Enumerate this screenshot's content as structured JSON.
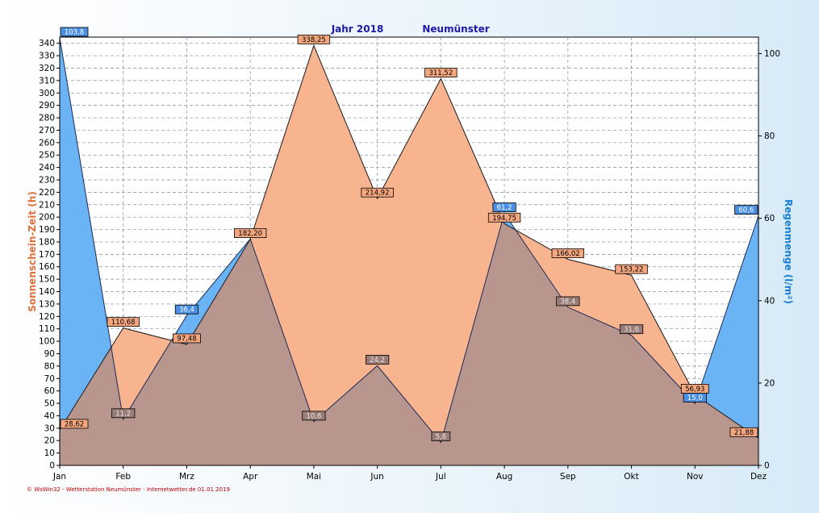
{
  "title": {
    "year_label": "Jahr  2018",
    "station": "Neumünster"
  },
  "footer": "© WsWin32 - Wetterstation Neumünster - Internetwetter.de  01.01.2019",
  "colors": {
    "sunshine_fill": "#f8b38f",
    "rain_fill": "#6ab4f5",
    "overlap_fill": "#b8968d",
    "sunshine_label_bg": "#f4a77e",
    "rain_label_bg": "#4b8fe3",
    "grid": "#7f8fa8"
  },
  "chart_data": {
    "type": "area",
    "categories": [
      "Jan",
      "Feb",
      "Mrz",
      "Apr",
      "Mai",
      "Jun",
      "Jul",
      "Aug",
      "Sep",
      "Okt",
      "Nov",
      "Dez"
    ],
    "ylabel_left": "Sonnenschein-Zeit  (h)",
    "ylabel_right": "Regenmenge  (l/m²)",
    "ylim_left": [
      0,
      345
    ],
    "ylim_right": [
      0,
      104
    ],
    "yticks_left": [
      "0",
      "10",
      "20",
      "30",
      "40",
      "50",
      "60",
      "70",
      "80",
      "90",
      "100",
      "110",
      "120",
      "130",
      "140",
      "150",
      "160",
      "170",
      "180",
      "190",
      "200",
      "210",
      "220",
      "230",
      "240",
      "250",
      "260",
      "270",
      "280",
      "290",
      "300",
      "310",
      "320",
      "330",
      "340"
    ],
    "yticks_right": [
      "0",
      "20",
      "40",
      "60",
      "80",
      "100"
    ],
    "grid": true,
    "series": [
      {
        "axis": "left",
        "values": [
          28.62,
          110.68,
          97.48,
          182.2,
          338.25,
          214.92,
          311.52,
          194.75,
          166.02,
          153.22,
          56.93,
          21.88
        ],
        "labels": [
          "28,62",
          "110,68",
          "97,48",
          "182,20",
          "338,25",
          "214,92",
          "311,52",
          "194,75",
          "166,02",
          "153,22",
          "56,93",
          "21,88"
        ]
      },
      {
        "axis": "right",
        "values": [
          103.8,
          11.2,
          36.4,
          55.0,
          10.6,
          24.2,
          5.6,
          61.2,
          38.4,
          31.6,
          15.0,
          60.6
        ],
        "labels": [
          "103,8",
          "11,2",
          "36,4",
          "",
          "10,6",
          "24,2",
          "5,6",
          "61,2",
          "38,4",
          "31,6",
          "15,0",
          "60,6"
        ]
      }
    ]
  }
}
